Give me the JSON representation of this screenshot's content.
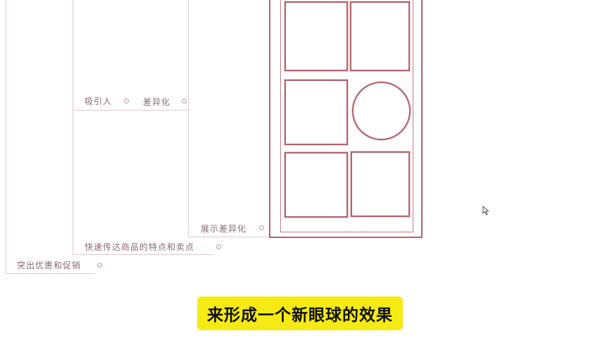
{
  "mindmap": {
    "nodes": {
      "attract": "吸引人",
      "differentiation": "差异化",
      "show_differentiation": "展示差异化",
      "convey_features": "快速传达商品的特点和卖点",
      "highlight_promotions": "突出优惠和促销"
    }
  },
  "subtitle": {
    "text": "来形成一个新眼球的效果"
  },
  "colors": {
    "frame_stroke": "#b4636b",
    "connector": "#e2c9cd",
    "subtitle_bg": "#f5ea14"
  },
  "icons": {
    "cursor": "mouse-pointer-icon",
    "collapse": "collapse-toggle-icon"
  }
}
